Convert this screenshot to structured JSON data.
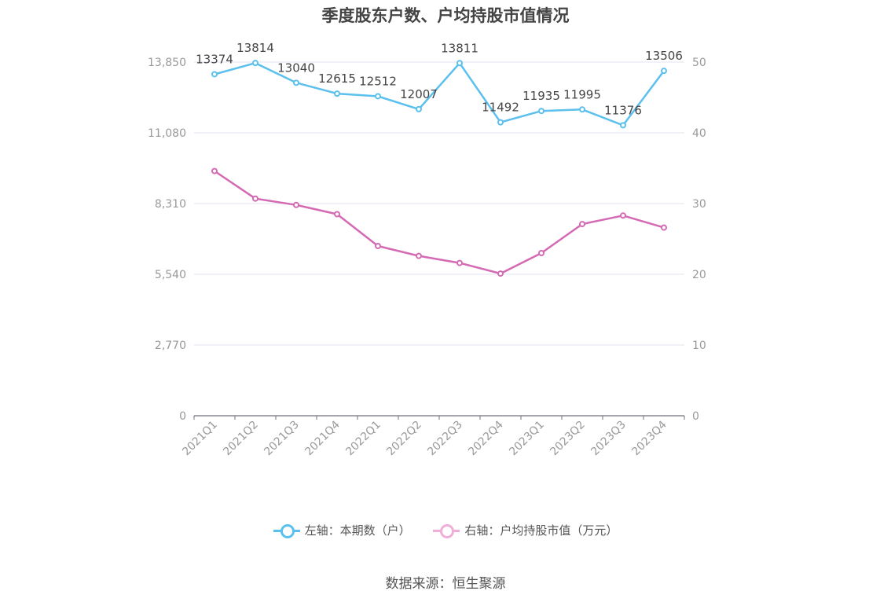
{
  "title": "季度股东户数、户均持股市值情况",
  "source": "数据来源：恒生聚源",
  "colors": {
    "left_series": "#5bc0ee",
    "right_series": "#d46ab4",
    "grid": "#e3e6f0",
    "axis_text": "#999999",
    "label_text": "#444444"
  },
  "legend": [
    {
      "label": "左轴：本期数（户）",
      "color": "#5bc0ee"
    },
    {
      "label": "右轴：户均持股市值（万元）",
      "color": "#f0aed8"
    }
  ],
  "chart_data": {
    "type": "line",
    "categories": [
      "2021Q1",
      "2021Q2",
      "2021Q3",
      "2021Q4",
      "2022Q1",
      "2022Q2",
      "2022Q3",
      "2022Q4",
      "2023Q1",
      "2023Q2",
      "2023Q3",
      "2023Q4"
    ],
    "y_left": {
      "min": 0,
      "max": 13850,
      "ticks": [
        0,
        2770,
        5540,
        8310,
        11080,
        13850
      ],
      "tick_labels": [
        "0",
        "2,770",
        "5,540",
        "8,310",
        "11,080",
        "13,850"
      ]
    },
    "y_right": {
      "min": 0,
      "max": 50,
      "ticks": [
        0,
        10,
        20,
        30,
        40,
        50
      ],
      "tick_labels": [
        "0",
        "10",
        "20",
        "30",
        "40",
        "50"
      ]
    },
    "grid": true,
    "legend_position": "bottom",
    "series": [
      {
        "name": "左轴：本期数（户）",
        "axis": "left",
        "values": [
          13374,
          13814,
          13040,
          12615,
          12512,
          12007,
          13811,
          11492,
          11935,
          11995,
          11376,
          13506
        ],
        "labels": [
          "13374",
          "13814",
          "13040",
          "12615",
          "12512",
          "12007",
          "13811",
          "11492",
          "11935",
          "11995",
          "11376",
          "13506"
        ]
      },
      {
        "name": "右轴：户均持股市值（万元）",
        "axis": "right",
        "values": [
          34.6,
          30.7,
          29.8,
          28.5,
          24.0,
          22.6,
          21.6,
          20.1,
          23.0,
          27.1,
          28.3,
          26.6
        ]
      }
    ]
  }
}
